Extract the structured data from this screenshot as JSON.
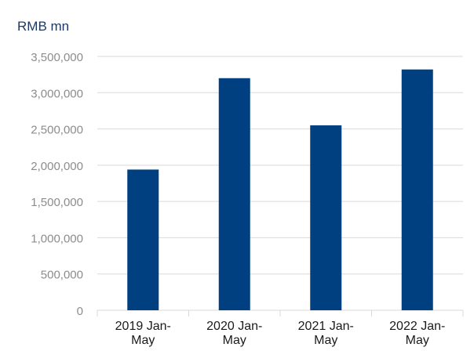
{
  "chart_data": {
    "type": "bar",
    "title": "",
    "xlabel": "",
    "ylabel": "RMB mn",
    "ylim": [
      0,
      3500000
    ],
    "yticks": [
      0,
      500000,
      1000000,
      1500000,
      2000000,
      2500000,
      3000000,
      3500000
    ],
    "ytick_labels": [
      "0",
      "500,000",
      "1,000,000",
      "1,500,000",
      "2,000,000",
      "2,500,000",
      "3,000,000",
      "3,500,000"
    ],
    "categories": [
      "2019 Jan-May",
      "2020 Jan-May",
      "2021 Jan-May",
      "2022 Jan-May"
    ],
    "category_lines": [
      [
        "2019 Jan-",
        "May"
      ],
      [
        "2020 Jan-",
        "May"
      ],
      [
        "2021 Jan-",
        "May"
      ],
      [
        "2022 Jan-",
        "May"
      ]
    ],
    "values": [
      1940000,
      3200000,
      2550000,
      3320000
    ],
    "grid": true,
    "legend": "none",
    "colors": {
      "bar": "#004080",
      "grid": "#d9d9d9",
      "tick_text": "#8c8c8c",
      "category_text": "#1a1a1a",
      "ylabel_text": "#1f3864"
    }
  }
}
